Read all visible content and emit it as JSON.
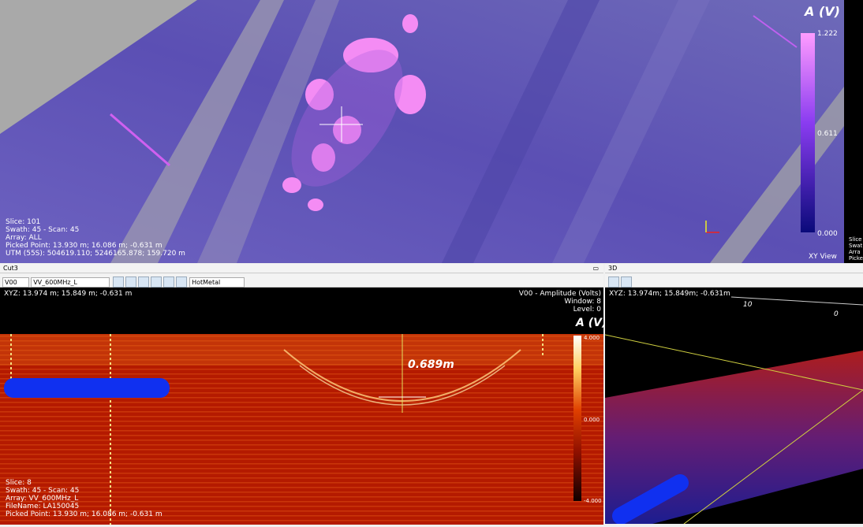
{
  "xy_view": {
    "colorbar_title": "A (V)",
    "colorbar_labels": [
      "1.222",
      "0.611",
      "0.000"
    ],
    "info": [
      "Slice: 101",
      "Swath: 45 - Scan: 45",
      "Array: ALL",
      "Picked Point: 13.930 m; 16.086 m; -0.631 m",
      "UTM (55S): 504619.110; 5246165.878; 159.720 m"
    ],
    "view_label": "XY View",
    "side_info": [
      "Slice",
      "Swat",
      "Arra",
      "Picke"
    ]
  },
  "cut_panel": {
    "title": "Cut3",
    "toolbar": {
      "channel": "V00",
      "array": "VV_600MHz_L",
      "palette": "HotMetal"
    },
    "xyz": "XYZ: 13.974 m; 15.849 m; -0.631 m",
    "header": [
      "V00 - Amplitude (Volts)",
      "Window: 8",
      "Level: 0"
    ],
    "colorbar_title": "A (V)",
    "colorbar_labels": [
      "4.000",
      "0.000",
      "-4.000"
    ],
    "depth_label": "0.689m",
    "info": [
      "Slice: 8",
      "Swath: 45 - Scan: 45",
      "Array: VV_600MHz_L",
      "FileName: LA150045",
      "Picked Point: 13.930 m; 16.086 m; -0.631 m"
    ]
  },
  "panel_3d": {
    "title": "3D",
    "xyz": "XYZ: 13.974m; 15.849m; -0.631m",
    "ruler_labels": [
      "10",
      "0"
    ]
  }
}
